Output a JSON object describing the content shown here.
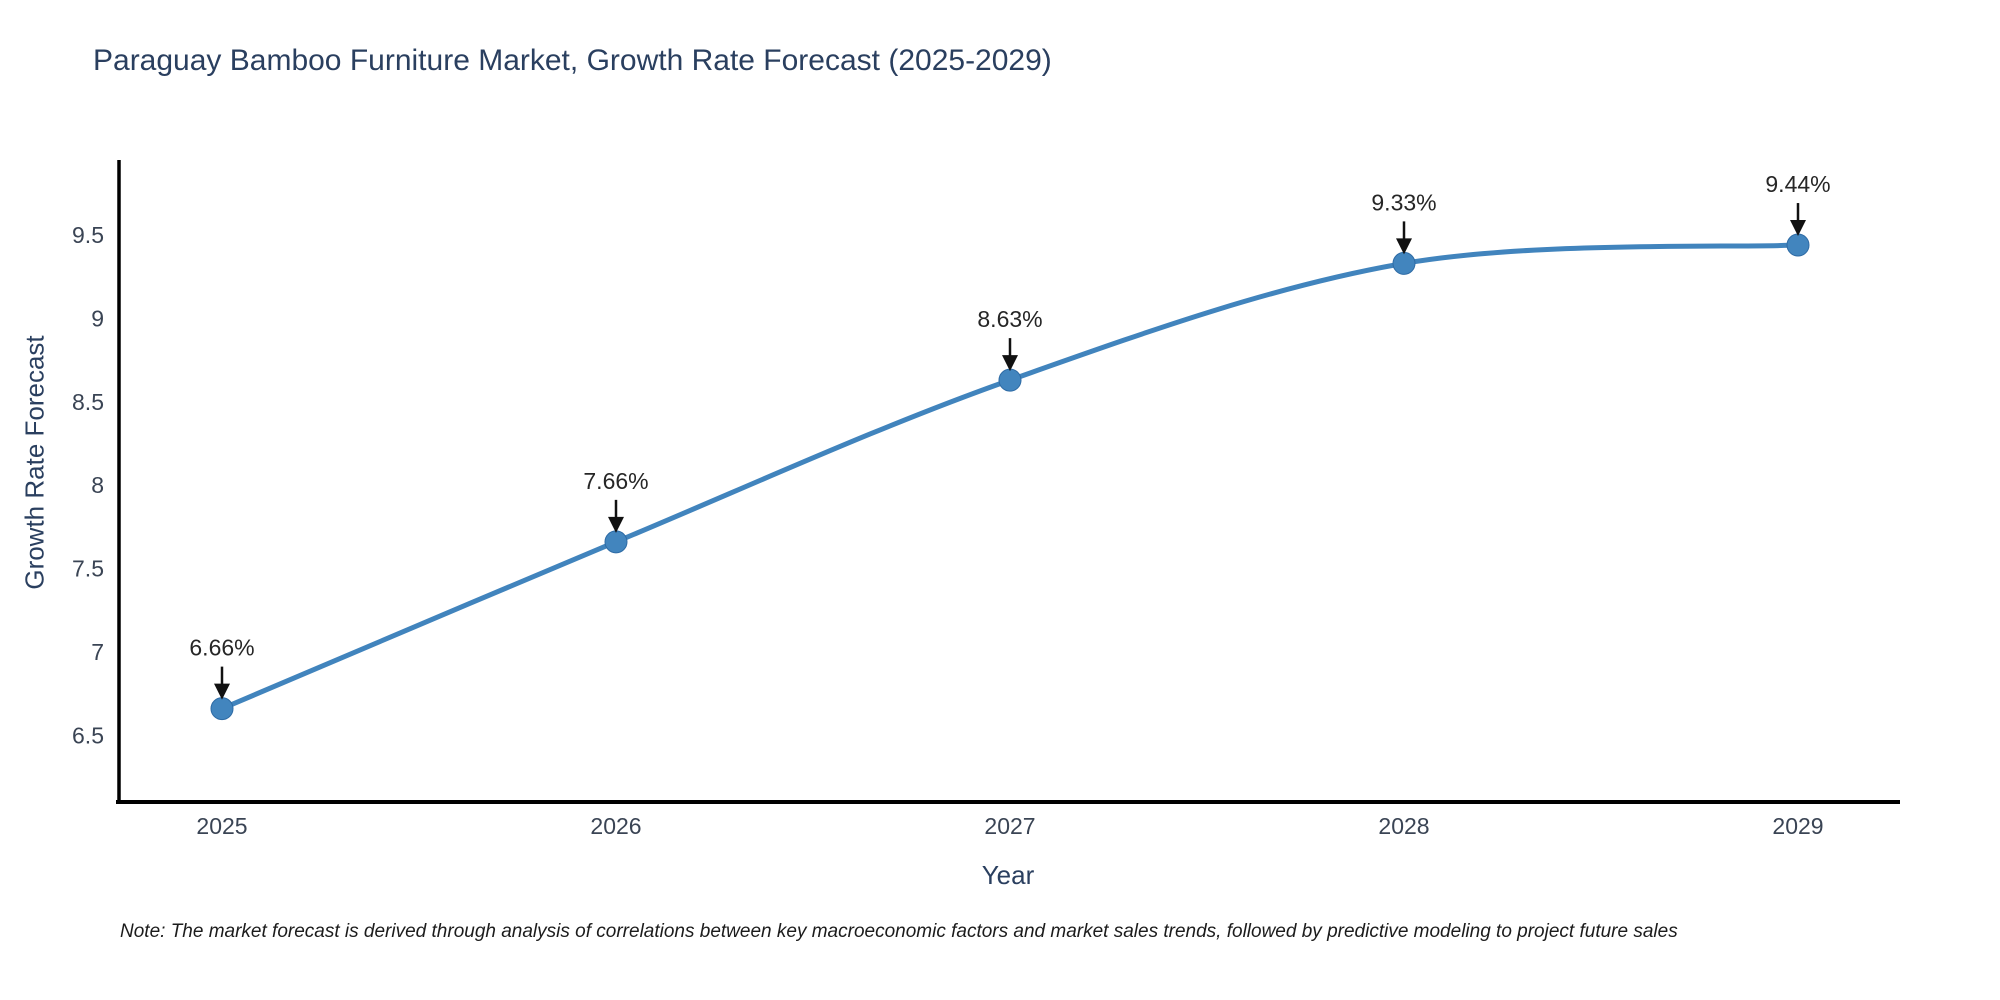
{
  "chart_data": {
    "type": "line",
    "title": "Paraguay Bamboo Furniture Market, Growth Rate Forecast (2025-2029)",
    "xlabel": "Year",
    "ylabel": "Growth Rate Forecast",
    "x": [
      2025,
      2026,
      2027,
      2028,
      2029
    ],
    "x_tick_labels": [
      "2025",
      "2026",
      "2027",
      "2028",
      "2029"
    ],
    "series": [
      {
        "name": "Growth Rate Forecast",
        "values": [
          6.66,
          7.66,
          8.63,
          9.33,
          9.44
        ],
        "point_labels": [
          "6.66%",
          "7.66%",
          "8.63%",
          "9.33%",
          "9.44%"
        ]
      }
    ],
    "y_ticks": [
      6.5,
      7,
      7.5,
      8,
      8.5,
      9,
      9.5
    ],
    "y_tick_labels": [
      "6.5",
      "7",
      "7.5",
      "8",
      "8.5",
      "9",
      "9.5"
    ],
    "ylim": [
      6.1,
      9.95
    ],
    "grid": false,
    "legend": false,
    "line_color": "#4184bd",
    "marker_color": "#4285be",
    "marker_edge_color": "#2e6ba5",
    "axis_color": "#000000",
    "tick_label_color": "#3a4454",
    "annotation_color": "#262626",
    "annotation_arrow_color": "#111111",
    "title_color": "#2a3f5f"
  },
  "note": {
    "text": "Note: The market forecast is derived through analysis of correlations between key macroeconomic factors and market sales trends, followed by predictive modeling to project future sales"
  }
}
